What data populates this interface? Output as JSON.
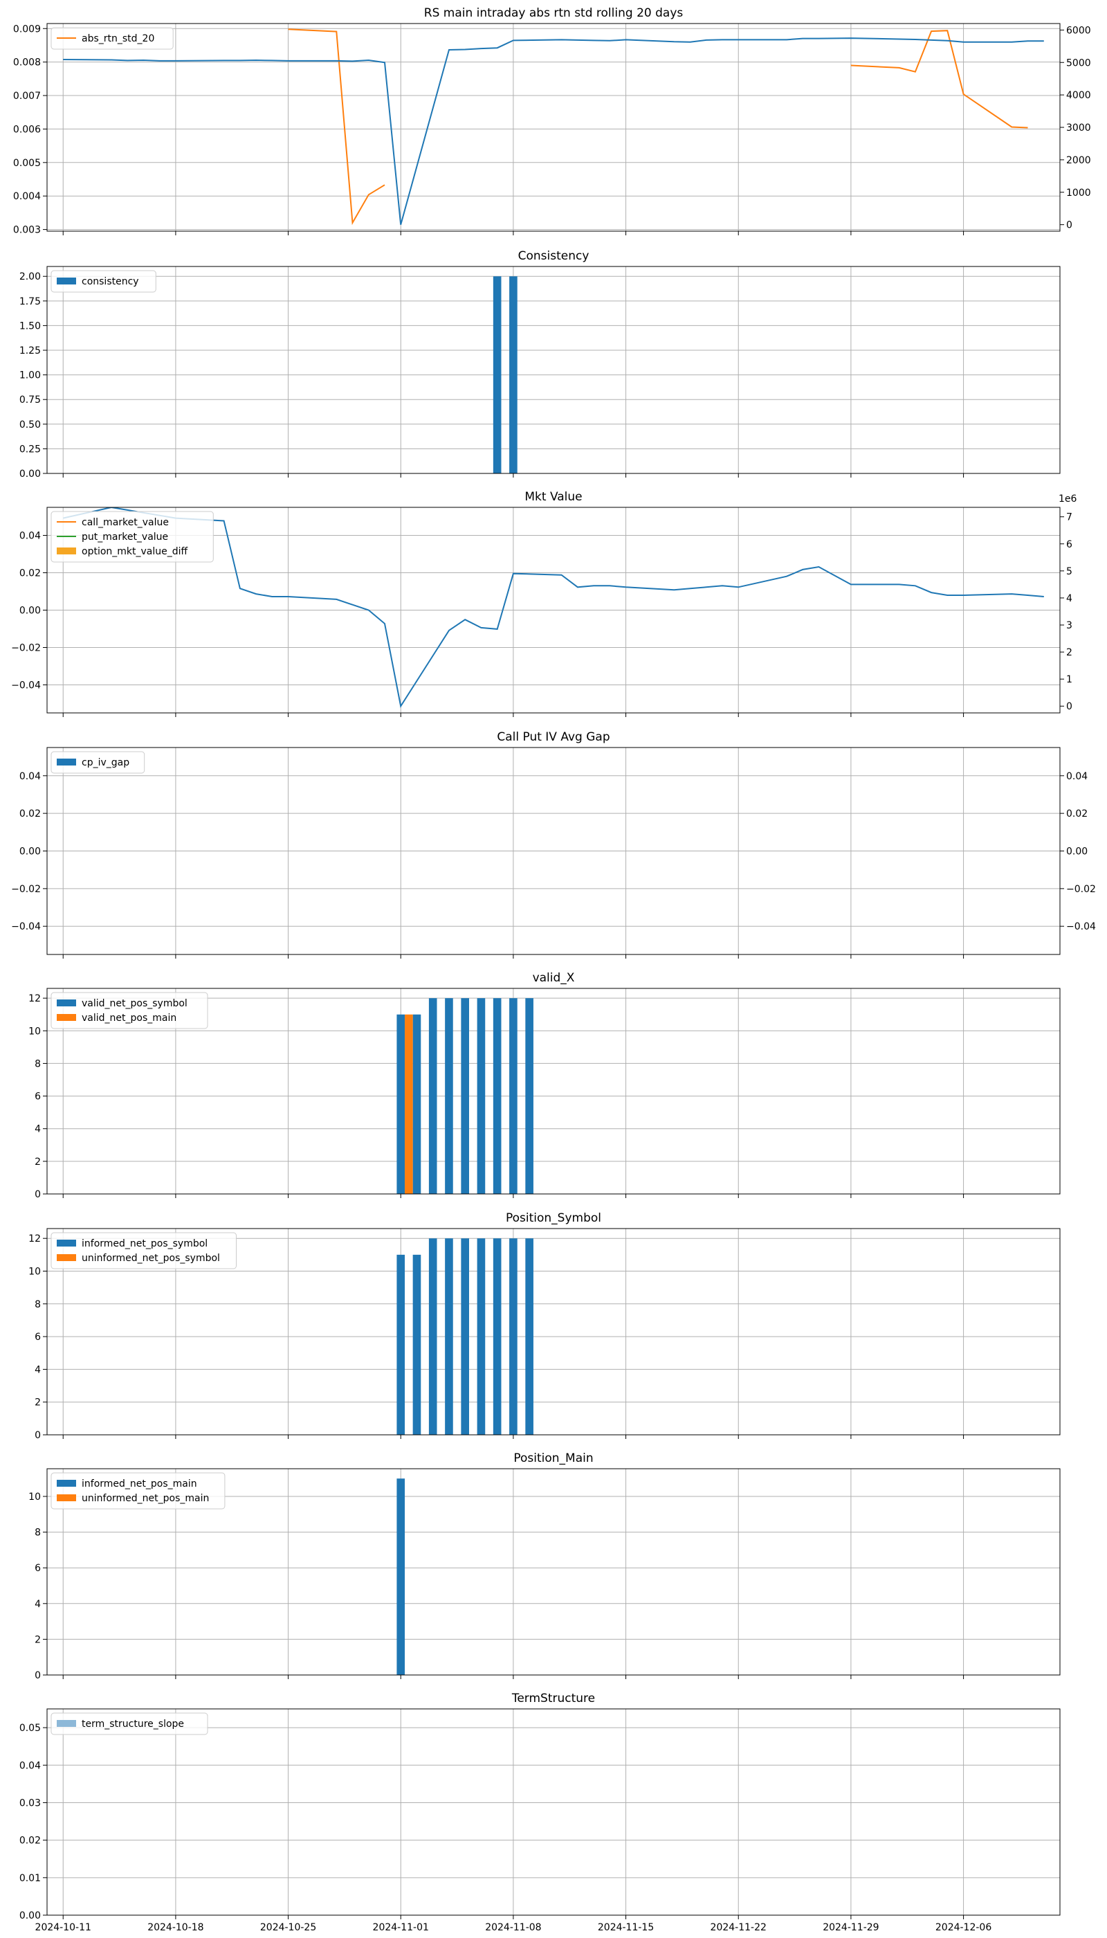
{
  "shared_x": {
    "dates": [
      "2024-10-11",
      "2024-10-14",
      "2024-10-15",
      "2024-10-16",
      "2024-10-17",
      "2024-10-18",
      "2024-10-21",
      "2024-10-22",
      "2024-10-23",
      "2024-10-24",
      "2024-10-25",
      "2024-10-28",
      "2024-10-29",
      "2024-10-30",
      "2024-10-31",
      "2024-11-01",
      "2024-11-04",
      "2024-11-05",
      "2024-11-06",
      "2024-11-07",
      "2024-11-08",
      "2024-11-11",
      "2024-11-12",
      "2024-11-13",
      "2024-11-14",
      "2024-11-15",
      "2024-11-18",
      "2024-11-19",
      "2024-11-20",
      "2024-11-21",
      "2024-11-22",
      "2024-11-25",
      "2024-11-26",
      "2024-11-27",
      "2024-11-29",
      "2024-12-02",
      "2024-12-03",
      "2024-12-04",
      "2024-12-05",
      "2024-12-06",
      "2024-12-09",
      "2024-12-10",
      "2024-12-11"
    ],
    "xlim": [
      "2024-10-10",
      "2024-12-12"
    ],
    "ticks": [
      "2024-10-11",
      "2024-10-18",
      "2024-10-25",
      "2024-11-01",
      "2024-11-08",
      "2024-11-15",
      "2024-11-22",
      "2024-11-29",
      "2024-12-06"
    ],
    "grid": true
  },
  "chart_data": [
    {
      "type": "line",
      "title": "RS main intraday abs rtn std rolling 20 days",
      "legend_position": "upper-left",
      "ylim": [
        0.00295,
        0.00915
      ],
      "yticks": [
        "0.003",
        "0.004",
        "0.005",
        "0.006",
        "0.007",
        "0.008",
        "0.009"
      ],
      "y2lim": [
        -200,
        6200
      ],
      "y2ticks": [
        "0",
        "1000",
        "2000",
        "3000",
        "4000",
        "5000",
        "6000"
      ],
      "series": [
        {
          "name": "abs_rtn_std_20",
          "color": "#ff7f0e",
          "axis": "left",
          "values": [
            null,
            null,
            null,
            null,
            null,
            null,
            null,
            null,
            null,
            null,
            0.00898,
            0.00891,
            0.0032,
            0.00404,
            0.00433,
            null,
            null,
            null,
            null,
            null,
            null,
            null,
            null,
            null,
            null,
            null,
            null,
            null,
            null,
            null,
            null,
            null,
            null,
            null,
            0.0079,
            0.00783,
            0.00771,
            0.00892,
            0.00894,
            0.00704,
            0.00606,
            0.00604,
            null
          ]
        },
        {
          "name": "",
          "color": "#1f77b4",
          "axis": "right",
          "values": [
            5090,
            5080,
            5060,
            5070,
            5050,
            5050,
            5060,
            5060,
            5070,
            5060,
            5050,
            5050,
            5040,
            5070,
            5000,
            0,
            5390,
            5400,
            5430,
            5450,
            5680,
            5700,
            5690,
            5680,
            5670,
            5700,
            5640,
            5630,
            5690,
            5700,
            5700,
            5700,
            5740,
            5740,
            5750,
            5720,
            5710,
            5690,
            5670,
            5630,
            5630,
            5660,
            5660
          ]
        }
      ]
    },
    {
      "type": "bar",
      "title": "Consistency",
      "legend_position": "upper-left",
      "ylim": [
        0,
        2.1
      ],
      "yticks": [
        "0.00",
        "0.25",
        "0.50",
        "0.75",
        "1.00",
        "1.25",
        "1.50",
        "1.75",
        "2.00"
      ],
      "series": [
        {
          "name": "consistency",
          "color": "#1f77b4",
          "points": [
            {
              "x": "2024-11-07",
              "y": 2
            },
            {
              "x": "2024-11-08",
              "y": 2
            }
          ]
        }
      ]
    },
    {
      "type": "line",
      "title": "Mkt Value",
      "legend_position": "upper-left",
      "ylim": [
        -0.055,
        0.055
      ],
      "yticks": [
        "−0.04",
        "−0.02",
        "0.00",
        "0.02",
        "0.04"
      ],
      "y2lim": [
        -0.25,
        7.35
      ],
      "y2ticks": [
        "0",
        "1",
        "2",
        "3",
        "4",
        "5",
        "6",
        "7"
      ],
      "y2_offset_label": "1e6",
      "series": [
        {
          "name": "call_market_value",
          "color": "#ff7f0e",
          "values": []
        },
        {
          "name": "put_market_value",
          "color": "#2ca02c",
          "values": []
        },
        {
          "name": "option_mkt_value_diff",
          "color": "#f5a623",
          "marker": "bar",
          "values": []
        },
        {
          "name": "",
          "color": "#1f77b4",
          "axis": "right",
          "values": [
            6.95,
            7.35,
            7.25,
            7.15,
            7.05,
            6.95,
            6.85,
            4.35,
            4.15,
            4.05,
            4.05,
            3.95,
            3.75,
            3.55,
            3.05,
            0.0,
            2.8,
            3.2,
            2.9,
            2.85,
            4.9,
            4.85,
            4.4,
            4.45,
            4.45,
            4.4,
            4.3,
            4.35,
            4.4,
            4.45,
            4.4,
            4.8,
            5.05,
            5.15,
            4.5,
            4.5,
            4.45,
            4.2,
            4.1,
            4.1,
            4.15,
            4.1,
            4.05
          ]
        }
      ]
    },
    {
      "type": "bar",
      "title": "Call Put IV Avg Gap",
      "legend_position": "upper-left",
      "ylim": [
        -0.055,
        0.055
      ],
      "yticks": [
        "−0.04",
        "−0.02",
        "0.00",
        "0.02",
        "0.04"
      ],
      "y2ticks": [
        "−0.04",
        "−0.02",
        "0.00",
        "0.02",
        "0.04"
      ],
      "series": [
        {
          "name": "cp_iv_gap",
          "color": "#1f77b4",
          "points": []
        }
      ]
    },
    {
      "type": "bar",
      "title": "valid_X",
      "legend_position": "upper-left",
      "ylim": [
        0,
        12.6
      ],
      "yticks": [
        "0",
        "2",
        "4",
        "6",
        "8",
        "10",
        "12"
      ],
      "series": [
        {
          "name": "valid_net_pos_symbol",
          "color": "#1f77b4",
          "points": [
            {
              "x": "2024-11-01",
              "y": 11
            },
            {
              "x": "2024-11-02",
              "y": 11
            },
            {
              "x": "2024-11-03",
              "y": 12
            },
            {
              "x": "2024-11-04",
              "y": 12
            },
            {
              "x": "2024-11-05",
              "y": 12
            },
            {
              "x": "2024-11-06",
              "y": 12
            },
            {
              "x": "2024-11-07",
              "y": 12
            },
            {
              "x": "2024-11-08",
              "y": 12
            },
            {
              "x": "2024-11-09",
              "y": 12
            }
          ]
        },
        {
          "name": "valid_net_pos_main",
          "color": "#ff7f0e",
          "points": [
            {
              "x": "2024-11-01",
              "y": 11
            }
          ]
        }
      ]
    },
    {
      "type": "bar",
      "title": "Position_Symbol",
      "legend_position": "upper-left",
      "ylim": [
        0,
        12.6
      ],
      "yticks": [
        "0",
        "2",
        "4",
        "6",
        "8",
        "10",
        "12"
      ],
      "series": [
        {
          "name": "informed_net_pos_symbol",
          "color": "#1f77b4",
          "points": [
            {
              "x": "2024-11-01",
              "y": 11
            },
            {
              "x": "2024-11-02",
              "y": 11
            },
            {
              "x": "2024-11-03",
              "y": 12
            },
            {
              "x": "2024-11-04",
              "y": 12
            },
            {
              "x": "2024-11-05",
              "y": 12
            },
            {
              "x": "2024-11-06",
              "y": 12
            },
            {
              "x": "2024-11-07",
              "y": 12
            },
            {
              "x": "2024-11-08",
              "y": 12
            },
            {
              "x": "2024-11-09",
              "y": 12
            }
          ]
        },
        {
          "name": "uninformed_net_pos_symbol",
          "color": "#ff7f0e",
          "points": []
        }
      ]
    },
    {
      "type": "bar",
      "title": "Position_Main",
      "legend_position": "upper-left",
      "ylim": [
        0,
        11.55
      ],
      "yticks": [
        "0",
        "2",
        "4",
        "6",
        "8",
        "10"
      ],
      "series": [
        {
          "name": "informed_net_pos_main",
          "color": "#1f77b4",
          "points": [
            {
              "x": "2024-11-01",
              "y": 11
            }
          ]
        },
        {
          "name": "uninformed_net_pos_main",
          "color": "#ff7f0e",
          "points": []
        }
      ]
    },
    {
      "type": "bar",
      "title": "TermStructure",
      "legend_position": "upper-left",
      "ylim": [
        0,
        0.055
      ],
      "yticks": [
        "0.00",
        "0.01",
        "0.02",
        "0.03",
        "0.04",
        "0.05"
      ],
      "series": [
        {
          "name": "term_structure_slope",
          "color": "#8db8d8",
          "points": []
        }
      ]
    }
  ]
}
